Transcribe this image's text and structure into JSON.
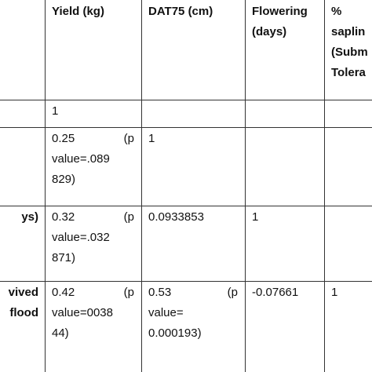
{
  "table": {
    "rows": [
      [
        [],
        [
          "Yield (kg)"
        ],
        [
          "DAT75 (cm)"
        ],
        [
          "Flowering",
          "(days)"
        ],
        [
          "%",
          "saplin",
          "(Subm",
          "Tolera"
        ]
      ],
      [
        [],
        [
          "1"
        ],
        [],
        [],
        []
      ],
      [
        [],
        [
          "0.25 (p",
          "value=.089",
          "829)"
        ],
        [
          "1"
        ],
        [],
        []
      ],
      [
        [
          "ys)"
        ],
        [
          "0.32 (p",
          "value=.032",
          "871)"
        ],
        [
          "0.0933853"
        ],
        [
          "1"
        ],
        []
      ],
      [
        [
          "vived",
          "flood"
        ],
        [
          "0.42 (p",
          "value=0038",
          "44)"
        ],
        [
          "0.53 (p",
          "value=",
          "0.000193)"
        ],
        [
          "-0.07661"
        ],
        [
          "1"
        ]
      ]
    ]
  }
}
